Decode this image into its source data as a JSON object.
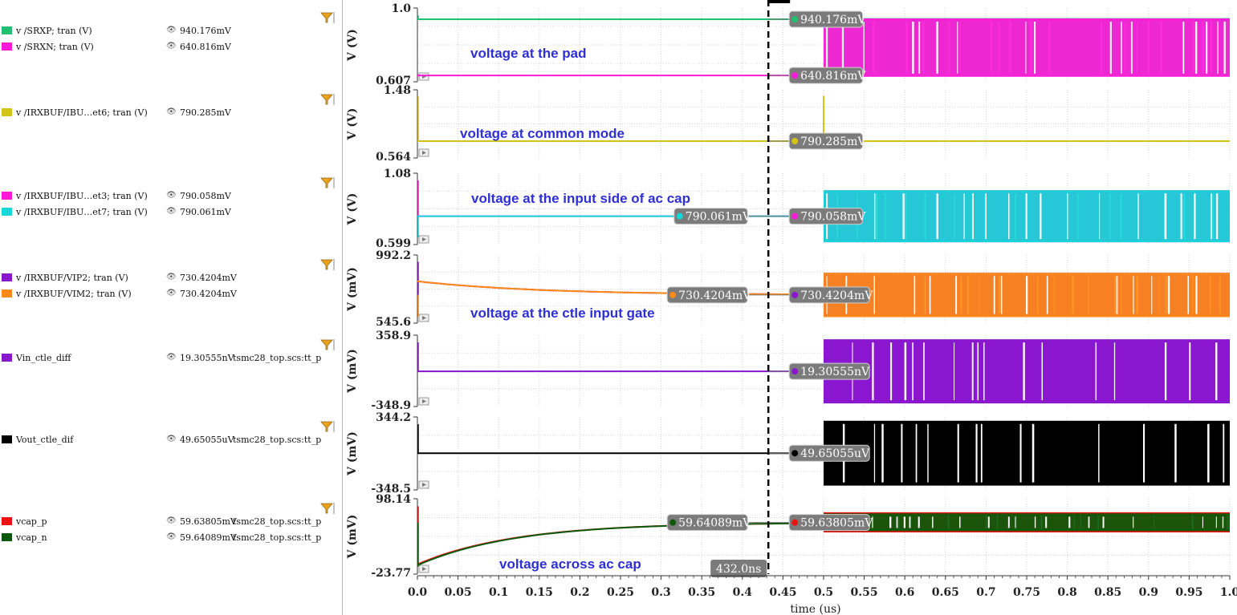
{
  "legend_groups": [
    {
      "items": [
        {
          "color": "#1fc06f",
          "name": "v /SRXP; tran (V)",
          "value": "940.176mV",
          "context": ""
        },
        {
          "color": "#ff1ad9",
          "name": "v /SRXN; tran (V)",
          "value": "640.816mV",
          "context": ""
        }
      ]
    },
    {
      "items": [
        {
          "color": "#d6c31a",
          "name": "v /IRXBUF/IBU…et6; tran (V)",
          "value": "790.285mV",
          "context": ""
        }
      ]
    },
    {
      "items": [
        {
          "color": "#ff1ad9",
          "name": "v /IRXBUF/IBU…et3; tran (V)",
          "value": "790.058mV",
          "context": ""
        },
        {
          "color": "#14d7d7",
          "name": "v /IRXBUF/IBU…et7; tran (V)",
          "value": "790.061mV",
          "context": ""
        }
      ]
    },
    {
      "items": [
        {
          "color": "#8a17cf",
          "name": "v /IRXBUF/VIP2; tran (V)",
          "value": "730.4204mV",
          "context": ""
        },
        {
          "color": "#ff8a14",
          "name": "v /IRXBUF/VIM2; tran (V)",
          "value": "730.4204mV",
          "context": ""
        }
      ]
    },
    {
      "items": [
        {
          "color": "#8a17cf",
          "name": "Vin_ctle_diff",
          "value": "19.30555nV",
          "context": "tsmc28_top.scs:tt_p"
        }
      ]
    },
    {
      "items": [
        {
          "color": "#000000",
          "name": "Vout_ctle_dif",
          "value": "49.65055uV",
          "context": "tsmc28_top.scs:tt_p"
        }
      ]
    },
    {
      "items": [
        {
          "color": "#ee1111",
          "name": "vcap_p",
          "value": "59.63805mV",
          "context": "tsmc28_top.scs:tt_p"
        },
        {
          "color": "#0b5a0b",
          "name": "vcap_n",
          "value": "59.64089mV",
          "context": "tsmc28_top.scs:tt_p"
        }
      ]
    }
  ],
  "chart_data": {
    "type": "line",
    "xlabel": "time (us)",
    "x_range": [
      0.0,
      1.0
    ],
    "x_ticks": [
      "0.0",
      "0.05",
      "0.1",
      "0.15",
      "0.2",
      "0.25",
      "0.3",
      "0.35",
      "0.4",
      "0.45",
      "0.5",
      "0.55",
      "0.6",
      "0.65",
      "0.7",
      "0.75",
      "0.8",
      "0.85",
      "0.9",
      "0.95",
      "1.0"
    ],
    "grid": true,
    "cursor": {
      "x": 0.432,
      "label": "432.0ns"
    },
    "activity_start": 0.5,
    "panels": [
      {
        "ylabel": "V (V)",
        "ymax_label": "1.0",
        "ymin_label": "0.607",
        "ylim": [
          0.607,
          1.0
        ],
        "annotation": "voltage at the pad",
        "series": [
          {
            "name": "v /SRXP; tran (V)",
            "color": "#1fc06f",
            "settled": 0.940176,
            "hi": 0.942,
            "lo": 0.64
          },
          {
            "name": "v /SRXN; tran (V)",
            "color": "#ff1ad9",
            "settled": 0.640816,
            "hi": 0.94,
            "lo": 0.638
          }
        ],
        "markers": [
          {
            "side": "right",
            "color": "#1fc06f",
            "value": 0.940176,
            "text": "940.176mV"
          },
          {
            "side": "right",
            "color": "#ff1ad9",
            "value": 0.640816,
            "text": "640.816mV"
          }
        ]
      },
      {
        "ylabel": "V (V)",
        "ymax_label": "1.48",
        "ymin_label": "0.564",
        "ylim": [
          0.564,
          1.48
        ],
        "annotation": "voltage at common mode",
        "series": [
          {
            "name": "v /IRXBUF/IBU…et6; tran (V)",
            "color": "#d6c31a",
            "settled": 0.790285,
            "hi": 0.795,
            "lo": 0.786,
            "spike": 1.4
          }
        ],
        "markers": [
          {
            "side": "right",
            "color": "#d6c31a",
            "value": 0.790285,
            "text": "790.285mV"
          }
        ]
      },
      {
        "ylabel": "V (V)",
        "ymax_label": "1.08",
        "ymin_label": "0.599",
        "ylim": [
          0.599,
          1.08
        ],
        "annotation": "voltage at the input side of ac cap",
        "series": [
          {
            "name": "v /IRXBUF/IBU…et3; tran (V)",
            "color": "#ff1ad9",
            "settled": 0.790058,
            "hi": 0.96,
            "lo": 0.62
          },
          {
            "name": "v /IRXBUF/IBU…et7; tran (V)",
            "color": "#14d7d7",
            "settled": 0.790061,
            "hi": 0.96,
            "lo": 0.62
          }
        ],
        "markers": [
          {
            "side": "left",
            "color": "#14d7d7",
            "value": 0.790061,
            "text": "790.061mV"
          },
          {
            "side": "right",
            "color": "#ff1ad9",
            "value": 0.790058,
            "text": "790.058mV"
          }
        ]
      },
      {
        "ylabel": "V (mV)",
        "ymax_label": "992.2",
        "ymin_label": "545.6",
        "ylim": [
          545.6,
          992.2
        ],
        "annotation": "voltage at the ctle input gate",
        "series": [
          {
            "name": "v /IRXBUF/VIP2; tran (V)",
            "color": "#8a17cf",
            "settled": 730.4204,
            "hi": 870,
            "lo": 590
          },
          {
            "name": "v /IRXBUF/VIM2; tran (V)",
            "color": "#ff8a14",
            "settled": 730.4204,
            "hi": 870,
            "lo": 590
          }
        ],
        "markers": [
          {
            "side": "left",
            "color": "#ff8a14",
            "value": 730.4204,
            "text": "730.4204mV"
          },
          {
            "side": "right",
            "color": "#8a17cf",
            "value": 730.4204,
            "text": "730.4204mV"
          }
        ]
      },
      {
        "ylabel": "V (mV)",
        "ymax_label": "358.9",
        "ymin_label": "-348.9",
        "ylim": [
          -348.9,
          358.9
        ],
        "annotation": "",
        "series": [
          {
            "name": "Vin_ctle_diff",
            "color": "#8a17cf",
            "settled": 0.0,
            "hi": 310,
            "lo": -310
          }
        ],
        "markers": [
          {
            "side": "right",
            "color": "#8a17cf",
            "value": 0.0,
            "text": "19.30555nV"
          }
        ]
      },
      {
        "ylabel": "V (mV)",
        "ymax_label": "344.2",
        "ymin_label": "-348.5",
        "ylim": [
          -348.5,
          344.2
        ],
        "annotation": "",
        "series": [
          {
            "name": "Vout_ctle_dif",
            "color": "#000000",
            "settled": 0.0,
            "hi": 300,
            "lo": -300
          }
        ],
        "markers": [
          {
            "side": "right",
            "color": "#000000",
            "value": 0.0,
            "text": "49.65055uV"
          }
        ]
      },
      {
        "ylabel": "V (mV)",
        "ymax_label": "98.14",
        "ymin_label": "-23.77",
        "ylim": [
          -23.77,
          98.14
        ],
        "annotation": "voltage across ac  cap",
        "series": [
          {
            "name": "vcap_p",
            "color": "#ee1111",
            "settled": 59.63805,
            "hi": 75,
            "lo": 45,
            "rc": true
          },
          {
            "name": "vcap_n",
            "color": "#0b5a0b",
            "settled": 59.64089,
            "hi": 73,
            "lo": 47,
            "rc": true
          }
        ],
        "markers": [
          {
            "side": "left",
            "color": "#0b5a0b",
            "value": 59.64089,
            "text": "59.64089mV"
          },
          {
            "side": "right",
            "color": "#ee1111",
            "value": 59.63805,
            "text": "59.63805mV"
          }
        ]
      }
    ]
  }
}
